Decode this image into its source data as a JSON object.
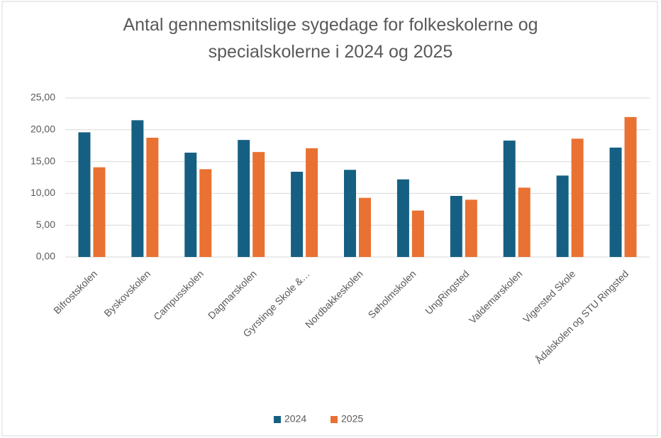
{
  "chart_data": {
    "type": "bar",
    "title": "Antal gennemsnitslige sygedage for folkeskolerne og specialskolerne i 2024 og 2025",
    "categories": [
      "Bifrostskolen",
      "Byskovskolen",
      "Campusskolen",
      "Dagmarskolen",
      "Gyrstinge Skole &…",
      "Nordbakkeskolen",
      "Søholmskolen",
      "UngRingsted",
      "Valdemarskolen",
      "Vigersted Skole",
      "Ådalskolen og STU Ringsted"
    ],
    "series": [
      {
        "name": "2024",
        "color": "#156082",
        "values": [
          19.6,
          21.5,
          16.4,
          18.4,
          13.4,
          13.7,
          12.2,
          9.6,
          18.3,
          12.8,
          17.2
        ]
      },
      {
        "name": "2025",
        "color": "#e97132",
        "values": [
          14.1,
          18.75,
          13.8,
          16.5,
          17.1,
          9.3,
          7.3,
          9.0,
          10.9,
          18.6,
          22.0
        ]
      }
    ],
    "ylim": [
      0,
      25
    ],
    "yticks": [
      {
        "value": 0,
        "label": "0,00"
      },
      {
        "value": 5,
        "label": "5,00"
      },
      {
        "value": 10,
        "label": "10,00"
      },
      {
        "value": 15,
        "label": "15,00"
      },
      {
        "value": 20,
        "label": "20,00"
      },
      {
        "value": 25,
        "label": "25,00"
      }
    ],
    "grid": true,
    "legend": "bottom"
  }
}
